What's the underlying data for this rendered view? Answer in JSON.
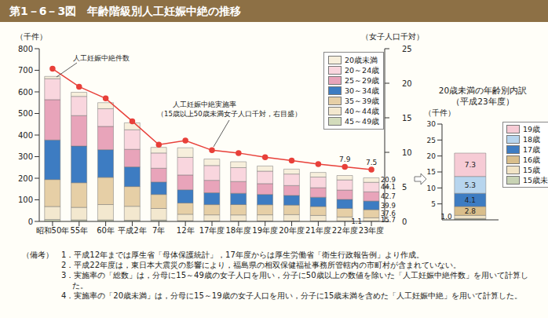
{
  "chart_data": [
    {
      "type": "bar",
      "title": "第1－6－3図　年齢階級別人工妊娠中絶の推移",
      "stacked": true,
      "legend": "upper right",
      "ylabel": "（千件）",
      "y2label": "（女子人口千対）",
      "annotations": [
        "人工妊娠中絶件数",
        "（15歳以上50歳未満女子人口千対，右目盛）"
      ],
      "categories": [
        "昭和50年",
        "55年",
        "60年",
        "平成2年",
        "7年",
        "12年",
        "17年度",
        "18年度",
        "19年度",
        "20年度",
        "21年度",
        "22年度",
        "23年度"
      ],
      "ylim": [
        0,
        800
      ],
      "yticks": [
        0,
        100,
        200,
        300,
        400,
        500,
        600,
        700,
        800
      ],
      "y2lim": [
        0,
        25
      ],
      "y2ticks": [
        0,
        5,
        10,
        15,
        20,
        25
      ],
      "series": [
        {
          "name": "20歳未満",
          "type": "bar",
          "color": "#f7efdc",
          "values": [
            10.6,
            19.0,
            28.0,
            32.4,
            26.1,
            44.5,
            30.1,
            27.3,
            23.9,
            22.8,
            21.5,
            20.4,
            20.9
          ],
          "value_labels": [
            null,
            null,
            null,
            null,
            null,
            null,
            null,
            null,
            null,
            null,
            null,
            null,
            "20.9"
          ]
        },
        {
          "name": "20～24歳",
          "type": "bar",
          "color": "#f9d6de",
          "values": [
            97.0,
            89.0,
            82.0,
            90.5,
            70.6,
            81.7,
            68.6,
            64.2,
            57.8,
            53.4,
            49.4,
            47.1,
            44.1
          ],
          "value_labels": [
            null,
            null,
            null,
            null,
            null,
            null,
            null,
            null,
            null,
            null,
            null,
            null,
            "44.1"
          ]
        },
        {
          "name": "25～29歳",
          "type": "bar",
          "color": "#e8a4ba",
          "values": [
            187.0,
            141.0,
            108.0,
            81.4,
            63.8,
            68.5,
            57.8,
            54.7,
            50.1,
            45.7,
            44.1,
            43.3,
            42.7
          ],
          "value_labels": [
            null,
            null,
            null,
            null,
            null,
            null,
            null,
            null,
            null,
            null,
            null,
            null,
            "42.7"
          ]
        },
        {
          "name": "30～34歳",
          "type": "bar",
          "color": "#3d7cc2",
          "values": [
            183.0,
            170.0,
            128.0,
            91.0,
            57.6,
            61.1,
            54.7,
            52.1,
            47.6,
            44.6,
            42.9,
            41.7,
            39.9
          ],
          "value_labels": [
            null,
            null,
            null,
            null,
            null,
            null,
            null,
            null,
            null,
            null,
            null,
            null,
            "39.9"
          ]
        },
        {
          "name": "35～39歳",
          "type": "bar",
          "color": "#e6cfa6",
          "values": [
            125.0,
            114.0,
            126.0,
            91.4,
            64.9,
            52.1,
            47.5,
            48.0,
            46.7,
            44.3,
            41.3,
            39.6,
            37.6
          ],
          "value_labels": [
            null,
            null,
            null,
            null,
            null,
            null,
            null,
            null,
            null,
            null,
            null,
            null,
            "37.6"
          ]
        },
        {
          "name": "40～44歳",
          "type": "bar",
          "color": "#f3e8cf",
          "values": [
            60.0,
            58.0,
            71.0,
            64.5,
            53.6,
            30.0,
            28.5,
            28.0,
            28.8,
            29.9,
            26.2,
            19.3,
            15.7
          ],
          "value_labels": [
            null,
            null,
            null,
            null,
            null,
            null,
            null,
            null,
            null,
            null,
            null,
            null,
            "15.7"
          ]
        },
        {
          "name": "45～49歳",
          "type": "bar",
          "color": "#d3dcbc",
          "values": [
            9.0,
            7.1,
            7.1,
            5.6,
            6.4,
            3.2,
            1.9,
            2.1,
            1.8,
            1.6,
            1.5,
            1.3,
            1.1
          ],
          "value_labels": [
            null,
            null,
            null,
            null,
            null,
            null,
            null,
            null,
            null,
            null,
            null,
            null,
            "1.1"
          ]
        },
        {
          "name": "人工妊娠中絶実施率",
          "type": "line",
          "axis": "y2",
          "color": "#e8403a",
          "marker": "circle",
          "values": [
            22.1,
            19.5,
            17.8,
            14.5,
            11.1,
            11.7,
            10.3,
            9.9,
            9.3,
            8.8,
            8.3,
            7.9,
            7.5
          ],
          "value_labels": [
            null,
            null,
            null,
            null,
            null,
            null,
            null,
            null,
            null,
            null,
            null,
            "7.9",
            "7.5"
          ]
        }
      ]
    },
    {
      "type": "bar",
      "title": "20歳未満の年齢別内訳\n（平成23年度）",
      "stacked": true,
      "legend": "right",
      "data_labels": true,
      "ylabel": "（千件）",
      "categories": [
        null
      ],
      "ylim": [
        0,
        30
      ],
      "yticks": [
        0,
        5,
        10,
        15,
        20,
        25,
        30
      ],
      "series": [
        {
          "name": "19歳",
          "color": "#f6cbd5",
          "values": [
            7.3
          ]
        },
        {
          "name": "18歳",
          "color": "#b7d5ee",
          "values": [
            5.3
          ]
        },
        {
          "name": "17歳",
          "color": "#3d7cc2",
          "values": [
            4.1
          ]
        },
        {
          "name": "16歳",
          "color": "#d9be8b",
          "values": [
            2.8
          ]
        },
        {
          "name": "15歳",
          "color": "#f1e4c6",
          "values": [
            1.0
          ],
          "value_labels": [
            "1.0"
          ]
        },
        {
          "name": "15歳未満",
          "color": "#c8d3b5",
          "values": [
            0.4
          ]
        }
      ]
    }
  ],
  "notes": {
    "label": "（備考）",
    "items": [
      "1．平成12年までは厚生省「母体保護統計」，17年度からは厚生労働省「衛生行政報告例」より作成。",
      "2．平成22年度は，東日本大震災の影響により，福島県の相双保健福祉事務所管轄内の市町村が含まれていない。",
      "3．実施率の「総数」は，分母に15～49歳の女子人口を用い，分子に50歳以上の数値を除いた「人工妊娠中絶件数」を用いて計算した。",
      "4．実施率の「20歳未満」は，分母に15～19歳の女子人口を用い，分子に15歳未満を含めた「人工妊娠中絶」を用いて計算した。"
    ]
  }
}
